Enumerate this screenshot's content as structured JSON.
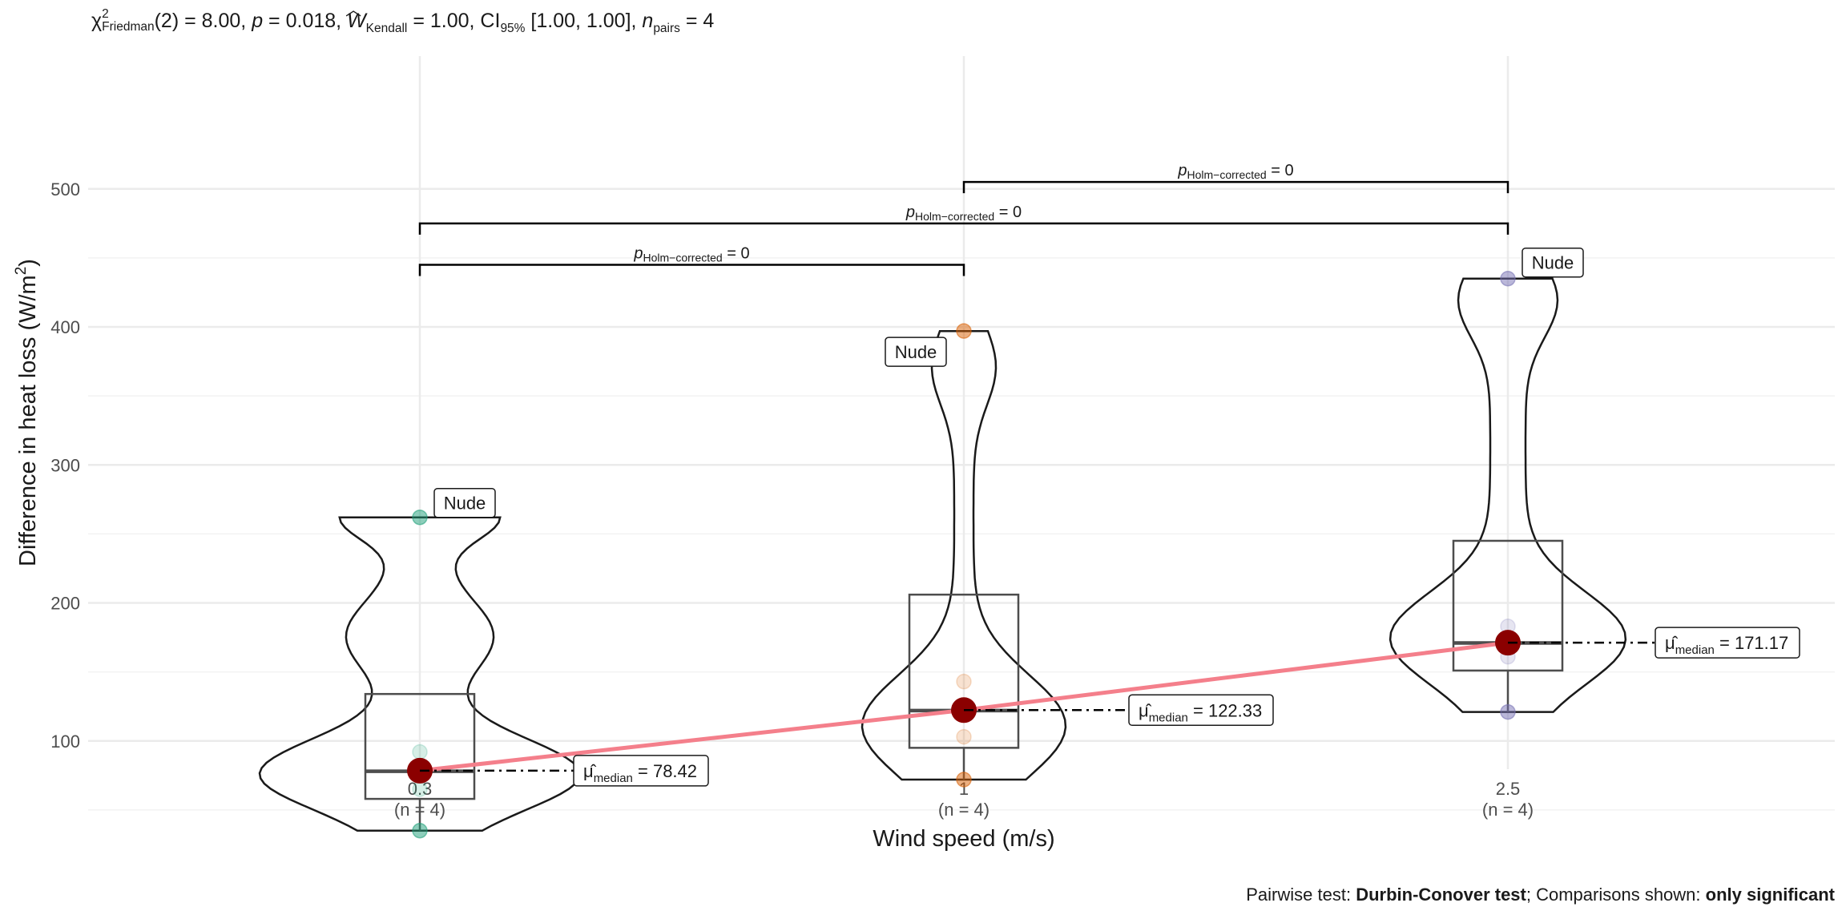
{
  "subtitle": {
    "chi_symbol": "χ",
    "chi_sup": "2",
    "chi_sub": "Friedman",
    "df": "(2) = 8.00, ",
    "p_symbol": "p",
    "p_value": " = 0.018, ",
    "w_symbol": "W",
    "w_sub": "Kendall",
    "w_value": " = 1.00, CI",
    "ci_sub": "95%",
    "ci_value": " [1.00, 1.00], ",
    "n_symbol": "n",
    "n_sub": "pairs",
    "n_value": " = 4"
  },
  "caption": {
    "prefix": "Pairwise test: ",
    "test": "Durbin-Conover test",
    "middle": "; Comparisons shown: ",
    "shown": "only significant"
  },
  "colors": {
    "group_0": "#1B9E77",
    "group_1": "#D95F02",
    "group_2": "#7570B3",
    "median_point": "#8B0000",
    "trend_line": "#F47F8B",
    "grid": "#EBEBEB"
  },
  "chart_data": {
    "type": "violin-box",
    "xlabel": "Wind speed (m/s)",
    "ylabel": "Difference in heat loss (W/m²)",
    "ylabel_parts": {
      "main": "Difference in heat loss (W/m",
      "sup": "2",
      "end": ")"
    },
    "ylim": [
      25,
      525
    ],
    "y_ticks": [
      100,
      200,
      300,
      400,
      500
    ],
    "grid": true,
    "groups": [
      {
        "category": "0.3",
        "n_label": "(n = 4)",
        "color": "#1B9E77",
        "points": [
          35,
          65,
          92,
          262
        ],
        "box": {
          "q1": 58,
          "median": 78,
          "q3": 134,
          "whisker_low": 35,
          "whisker_high": 134
        },
        "violin_range": [
          35,
          262
        ],
        "median_value": 78.42,
        "median_label": "78.42",
        "outlier_label": "Nude",
        "outlier_value": 262
      },
      {
        "category": "1",
        "n_label": "(n = 4)",
        "color": "#D95F02",
        "points": [
          72,
          103,
          143,
          397
        ],
        "box": {
          "q1": 95,
          "median": 122,
          "q3": 206,
          "whisker_low": 72,
          "whisker_high": 206
        },
        "violin_range": [
          72,
          397
        ],
        "median_value": 122.33,
        "median_label": "122.33",
        "outlier_label": "Nude",
        "outlier_value": 397
      },
      {
        "category": "2.5",
        "n_label": "(n = 4)",
        "color": "#7570B3",
        "points": [
          121,
          161,
          183,
          435
        ],
        "box": {
          "q1": 151,
          "median": 171,
          "q3": 245,
          "whisker_low": 121,
          "whisker_high": 245
        },
        "violin_range": [
          121,
          435
        ],
        "median_value": 171.17,
        "median_label": "171.17",
        "outlier_label": "Nude",
        "outlier_value": 435
      }
    ],
    "median_symbol": "μ̂",
    "median_sub": "median",
    "comparisons": [
      {
        "from": 0,
        "to": 1,
        "y": 445,
        "p_symbol": "p",
        "p_sub": "Holm−corrected",
        "p_text": " = 0"
      },
      {
        "from": 0,
        "to": 2,
        "y": 475,
        "p_symbol": "p",
        "p_sub": "Holm−corrected",
        "p_text": " = 0"
      },
      {
        "from": 1,
        "to": 2,
        "y": 505,
        "p_symbol": "p",
        "p_sub": "Holm−corrected",
        "p_text": " = 0"
      }
    ]
  }
}
